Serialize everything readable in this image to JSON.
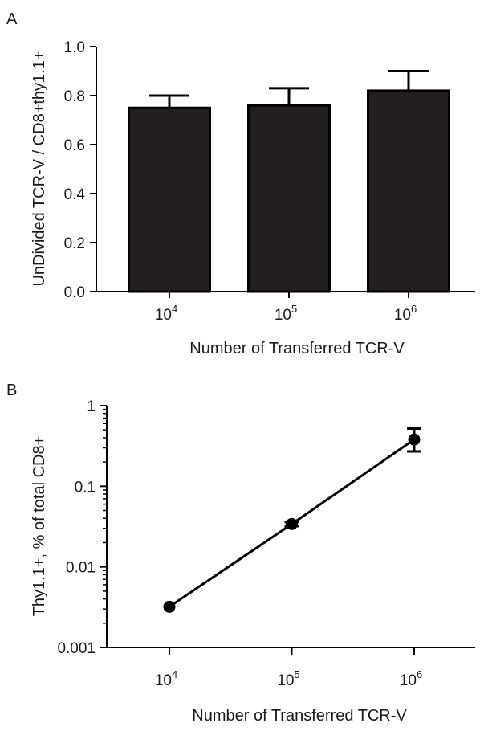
{
  "chart_data": [
    {
      "panel": "A",
      "type": "bar",
      "categories": [
        "10^4",
        "10^5",
        "10^6"
      ],
      "x_tick_labels": [
        {
          "base": "10",
          "exp": "4"
        },
        {
          "base": "10",
          "exp": "5"
        },
        {
          "base": "10",
          "exp": "6"
        }
      ],
      "values": [
        0.75,
        0.76,
        0.82
      ],
      "error": [
        0.05,
        0.07,
        0.08
      ],
      "ylim": [
        0,
        1.0
      ],
      "y_ticks": [
        "0.0",
        "0.2",
        "0.4",
        "0.6",
        "0.8",
        "1.0"
      ],
      "xlabel": "Number of Transferred TCR-V",
      "ylabel": "UnDivided TCR-V / CD8+thy1.1+",
      "bar_color": "#231f20"
    },
    {
      "panel": "B",
      "type": "scatter",
      "x": [
        10000,
        100000,
        1000000
      ],
      "x_tick_labels": [
        {
          "base": "10",
          "exp": "4"
        },
        {
          "base": "10",
          "exp": "5"
        },
        {
          "base": "10",
          "exp": "6"
        }
      ],
      "y": [
        0.0032,
        0.034,
        0.38
      ],
      "y_err_low": [
        0.0032,
        0.032,
        0.27
      ],
      "y_err_high": [
        0.0032,
        0.036,
        0.52
      ],
      "y_scale": "log",
      "ylim": [
        0.001,
        1
      ],
      "y_ticks": [
        "1",
        "0.1",
        "0.01",
        "0.001"
      ],
      "xlabel": "Number of Transferred TCR-V",
      "ylabel": "Thy1.1+, % of total CD8+",
      "line_color": "#000000"
    }
  ]
}
